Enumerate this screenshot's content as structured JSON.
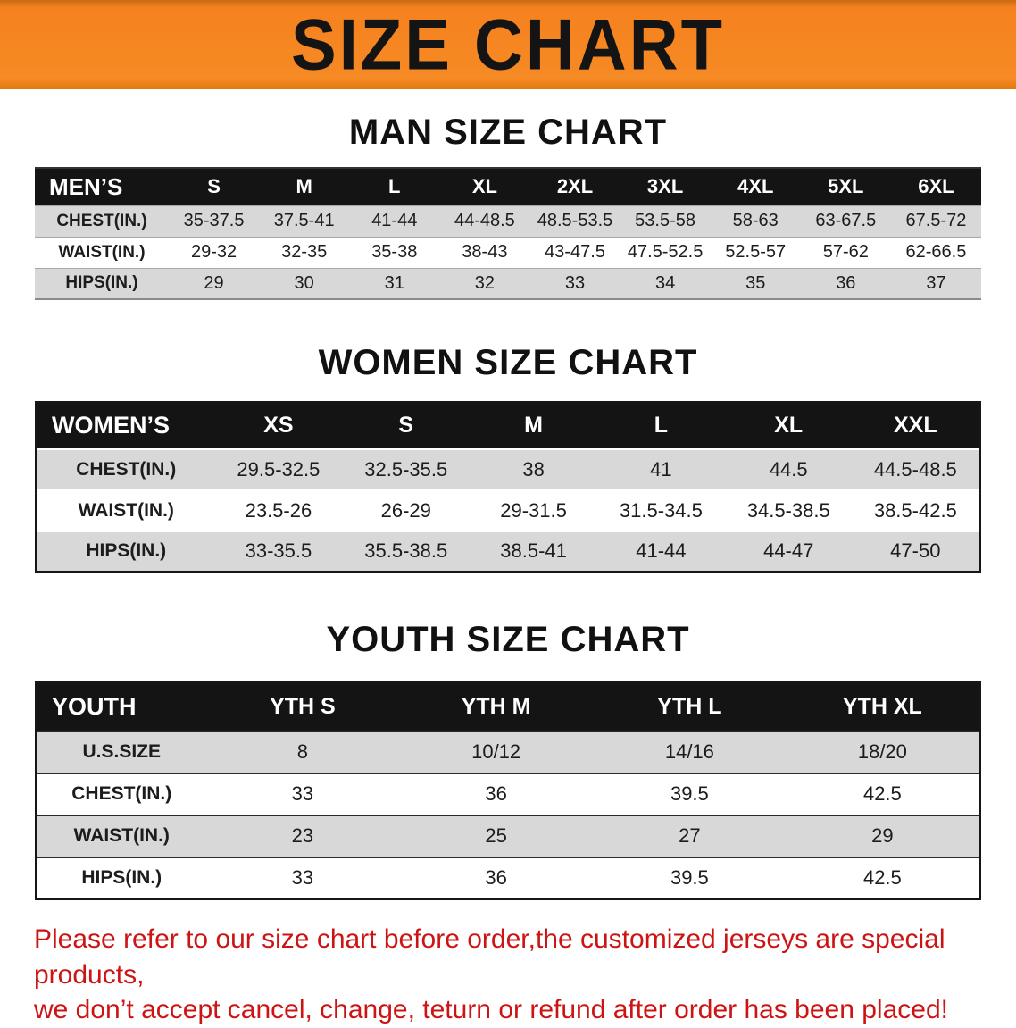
{
  "colors": {
    "banner_bg": "#f5821f",
    "table_header_bg": "#141414",
    "row_shade_gray": "#d8d8d8",
    "disclaimer_red": "#cd1414"
  },
  "banner": {
    "title": "SIZE CHART"
  },
  "sections": [
    {
      "heading": "MAN SIZE CHART",
      "table": {
        "header": [
          "MEN’S",
          "S",
          "M",
          "L",
          "XL",
          "2XL",
          "3XL",
          "4XL",
          "5XL",
          "6XL"
        ],
        "rows": [
          {
            "label": "CHEST(IN.)",
            "values": [
              "35-37.5",
              "37.5-41",
              "41-44",
              "44-48.5",
              "48.5-53.5",
              "53.5-58",
              "58-63",
              "63-67.5",
              "67.5-72"
            ]
          },
          {
            "label": "WAIST(IN.)",
            "values": [
              "29-32",
              "32-35",
              "35-38",
              "38-43",
              "43-47.5",
              "47.5-52.5",
              "52.5-57",
              "57-62",
              "62-66.5"
            ]
          },
          {
            "label": "HIPS(IN.)",
            "values": [
              "29",
              "30",
              "31",
              "32",
              "33",
              "34",
              "35",
              "36",
              "37"
            ]
          }
        ]
      }
    },
    {
      "heading": "WOMEN SIZE CHART",
      "table": {
        "header": [
          "WOMEN’S",
          "XS",
          "S",
          "M",
          "L",
          "XL",
          "XXL"
        ],
        "rows": [
          {
            "label": "CHEST(IN.)",
            "values": [
              "29.5-32.5",
              "32.5-35.5",
              "38",
              "41",
              "44.5",
              "44.5-48.5"
            ]
          },
          {
            "label": "WAIST(IN.)",
            "values": [
              "23.5-26",
              "26-29",
              "29-31.5",
              "31.5-34.5",
              "34.5-38.5",
              "38.5-42.5"
            ]
          },
          {
            "label": "HIPS(IN.)",
            "values": [
              "33-35.5",
              "35.5-38.5",
              "38.5-41",
              "41-44",
              "44-47",
              "47-50"
            ]
          }
        ]
      }
    },
    {
      "heading": "YOUTH SIZE CHART",
      "table": {
        "header": [
          "YOUTH",
          "YTH S",
          "YTH M",
          "YTH L",
          "YTH XL"
        ],
        "rows": [
          {
            "label": "U.S.SIZE",
            "values": [
              "8",
              "10/12",
              "14/16",
              "18/20"
            ]
          },
          {
            "label": "CHEST(IN.)",
            "values": [
              "33",
              "36",
              "39.5",
              "42.5"
            ]
          },
          {
            "label": "WAIST(IN.)",
            "values": [
              "23",
              "25",
              "27",
              "29"
            ]
          },
          {
            "label": "HIPS(IN.)",
            "values": [
              "33",
              "36",
              "39.5",
              "42.5"
            ]
          }
        ]
      }
    }
  ],
  "disclaimer": {
    "line1": "Please refer to our size chart before order,the customized jerseys are special products,",
    "line2": "we don’t accept cancel, change, teturn or refund after order has been placed!"
  }
}
